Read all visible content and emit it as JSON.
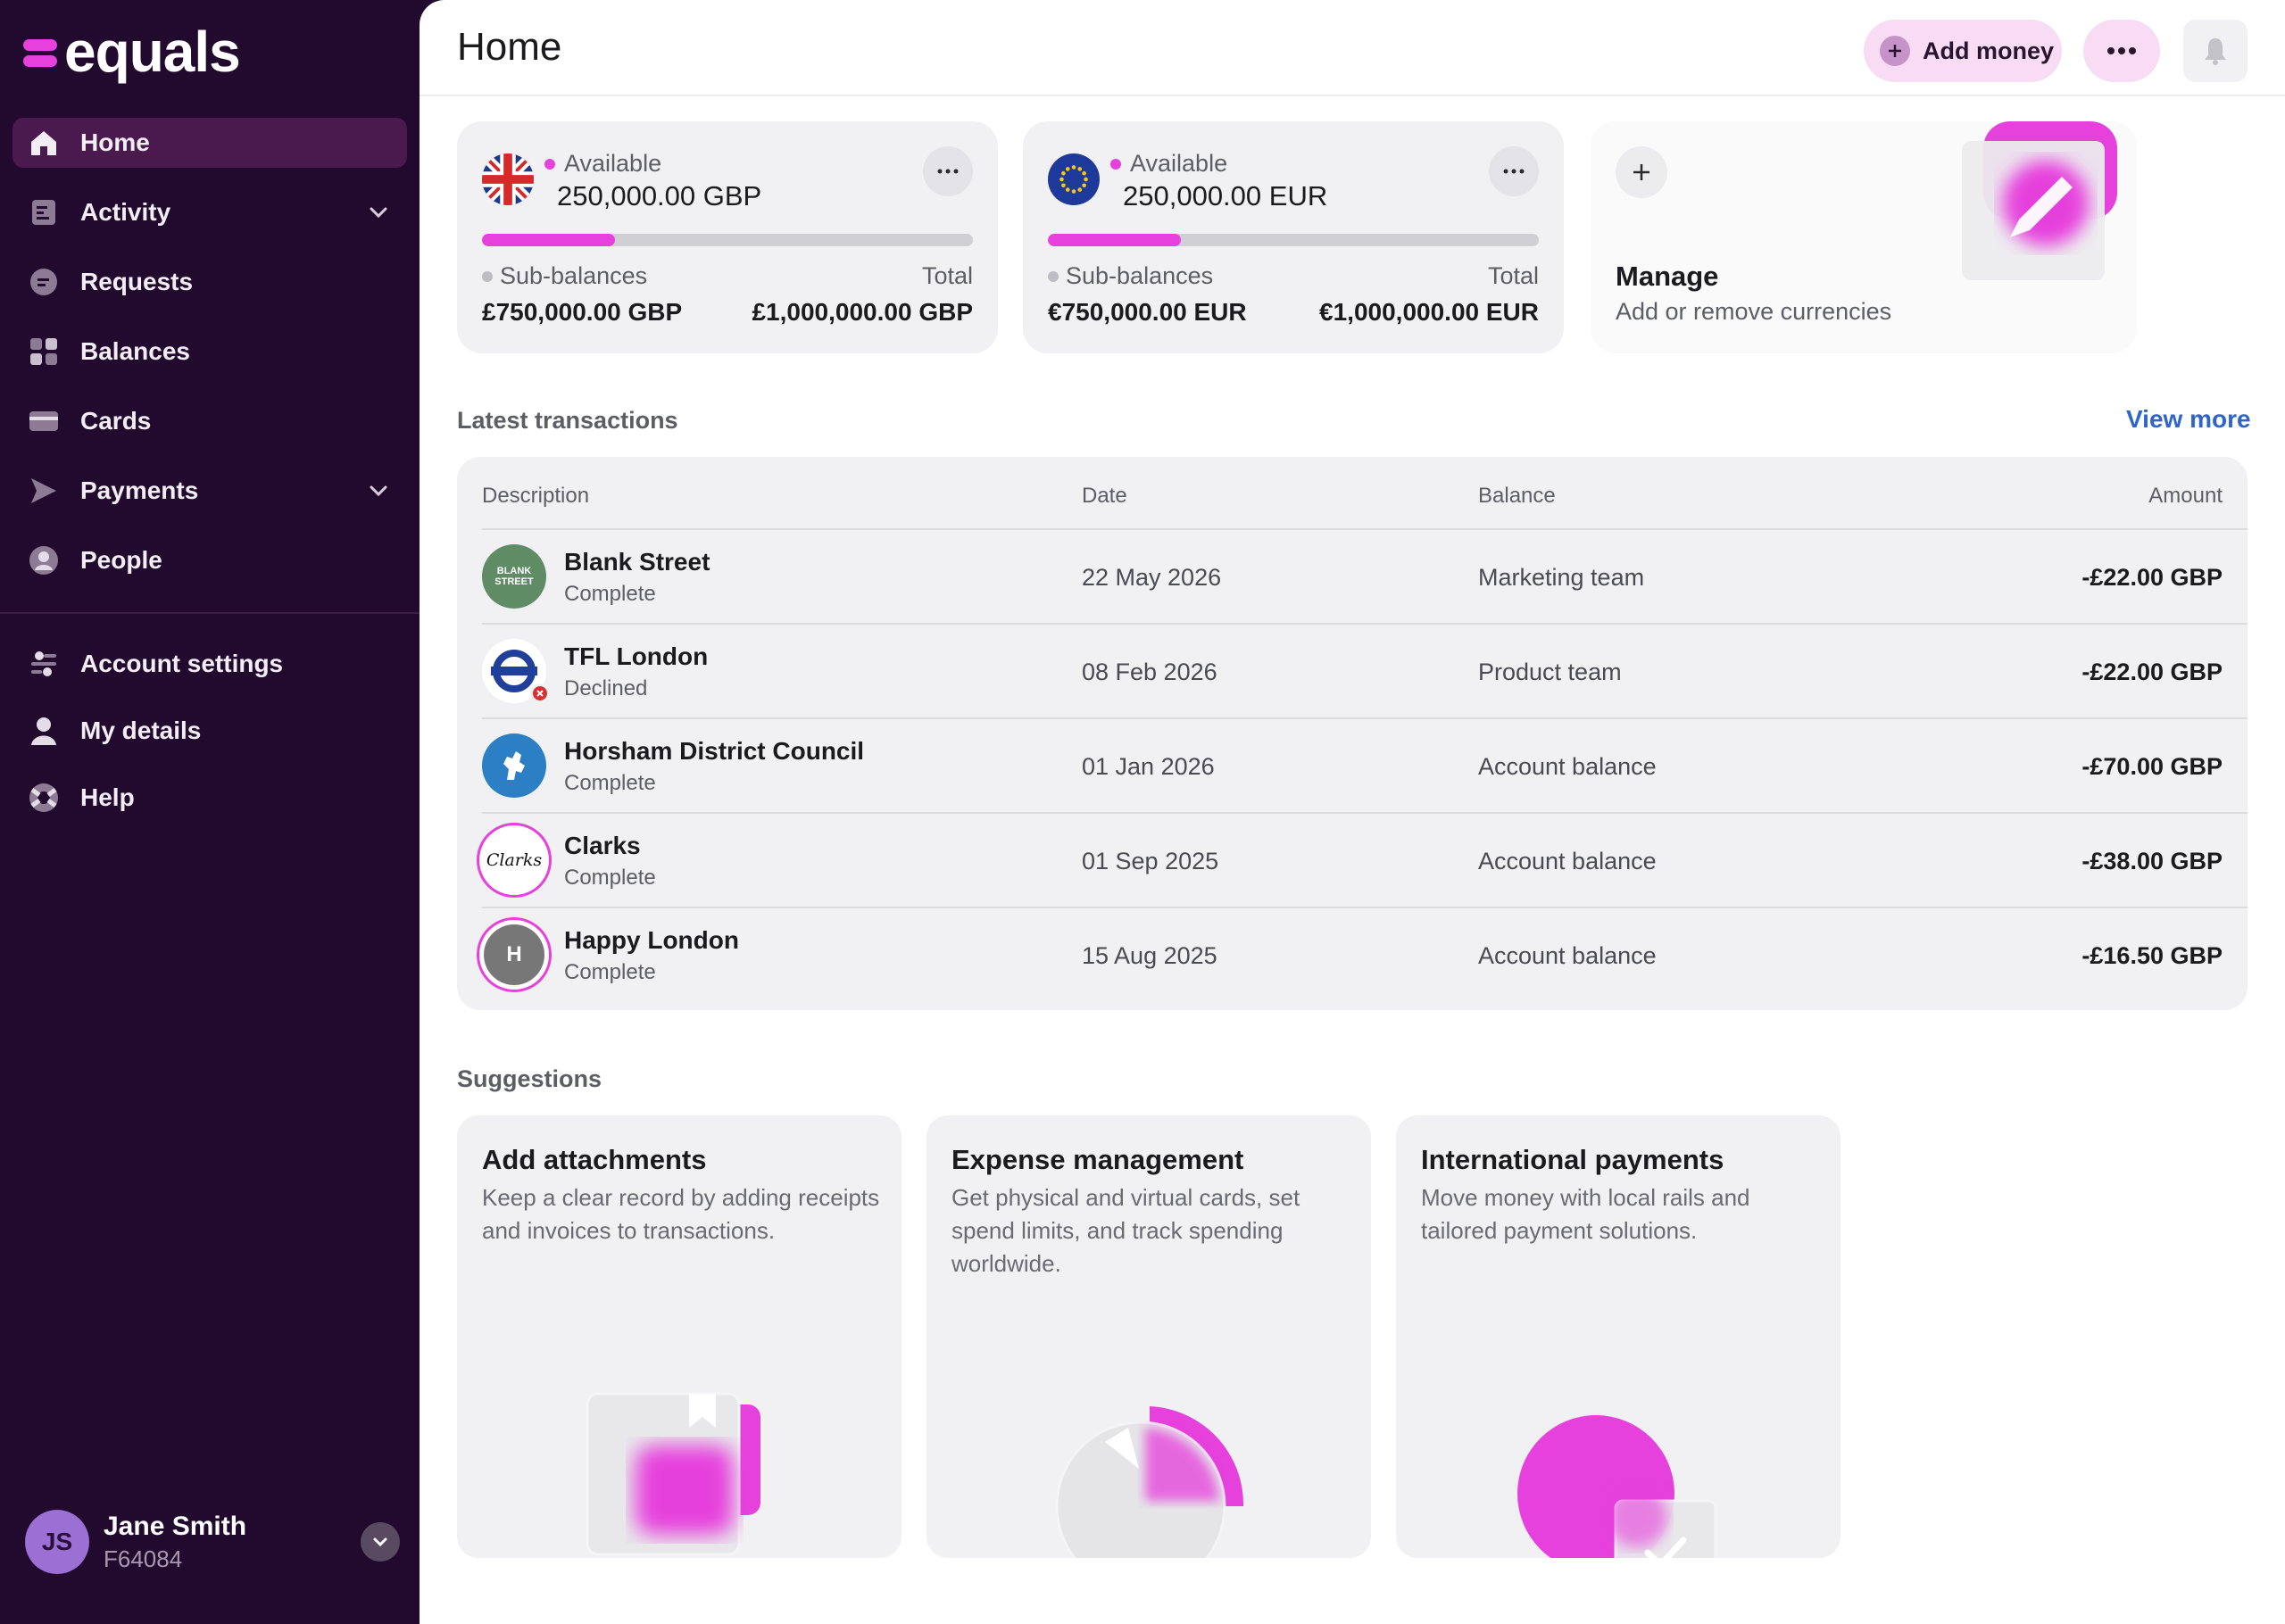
{
  "brand": {
    "name": "equals",
    "accent": "#e641dc",
    "sidebar_bg": "#220a2e"
  },
  "sidebar": {
    "items": [
      {
        "label": "Home",
        "icon": "home-icon",
        "active": true
      },
      {
        "label": "Activity",
        "icon": "activity-icon",
        "expandable": true
      },
      {
        "label": "Requests",
        "icon": "requests-icon"
      },
      {
        "label": "Balances",
        "icon": "balances-icon"
      },
      {
        "label": "Cards",
        "icon": "card-icon"
      },
      {
        "label": "Payments",
        "icon": "payments-icon",
        "expandable": true
      },
      {
        "label": "People",
        "icon": "people-icon"
      }
    ],
    "secondary": [
      {
        "label": "Account settings",
        "icon": "settings-icon"
      },
      {
        "label": "My details",
        "icon": "user-icon"
      },
      {
        "label": "Help",
        "icon": "help-icon"
      }
    ],
    "user": {
      "initials": "JS",
      "name": "Jane Smith",
      "id": "F64084"
    }
  },
  "header": {
    "title": "Home",
    "add_money_label": "Add money"
  },
  "balances": [
    {
      "currency_flag": "uk-flag",
      "available_label": "Available",
      "available": "250,000.00 GBP",
      "fill_fraction": 0.27,
      "sub_label": "Sub-balances",
      "sub_amount": "£750,000.00 GBP",
      "total_label": "Total",
      "total_amount": "£1,000,000.00 GBP"
    },
    {
      "currency_flag": "eu-flag",
      "available_label": "Available",
      "available": "250,000.00 EUR",
      "fill_fraction": 0.27,
      "sub_label": "Sub-balances",
      "sub_amount": "€750,000.00 EUR",
      "total_label": "Total",
      "total_amount": "€1,000,000.00 EUR"
    }
  ],
  "manage": {
    "title": "Manage",
    "subtitle": "Add or remove currencies"
  },
  "transactions": {
    "section_label": "Latest transactions",
    "view_more": "View more",
    "columns": [
      "Description",
      "Date",
      "Balance",
      "Amount"
    ],
    "rows": [
      {
        "logo_text": "BLANK STREET",
        "name": "Blank Street",
        "status": "Complete",
        "date": "22 May 2026",
        "balance": "Marketing team",
        "amount": "-£22.00 GBP"
      },
      {
        "logo_text": "",
        "name": "TFL London",
        "status": "Declined",
        "date": "08 Feb 2026",
        "balance": "Product team",
        "amount": "-£22.00 GBP"
      },
      {
        "logo_text": "",
        "name": "Horsham District Council",
        "status": "Complete",
        "date": "01 Jan 2026",
        "balance": "Account balance",
        "amount": "-£70.00 GBP"
      },
      {
        "logo_text": "Clarks",
        "name": "Clarks",
        "status": "Complete",
        "date": "01 Sep 2025",
        "balance": "Account balance",
        "amount": "-£38.00 GBP"
      },
      {
        "logo_text": "H",
        "name": "Happy London",
        "status": "Complete",
        "date": "15 Aug 2025",
        "balance": "Account balance",
        "amount": "-£16.50 GBP"
      }
    ]
  },
  "suggestions": {
    "section_label": "Suggestions",
    "cards": [
      {
        "title": "Add attachments",
        "body": "Keep a clear record by adding receipts and invoices to transactions."
      },
      {
        "title": "Expense management",
        "body": "Get physical and virtual cards, set spend limits, and track spending worldwide."
      },
      {
        "title": "International payments",
        "body": "Move money with local rails and tailored payment solutions."
      }
    ]
  }
}
